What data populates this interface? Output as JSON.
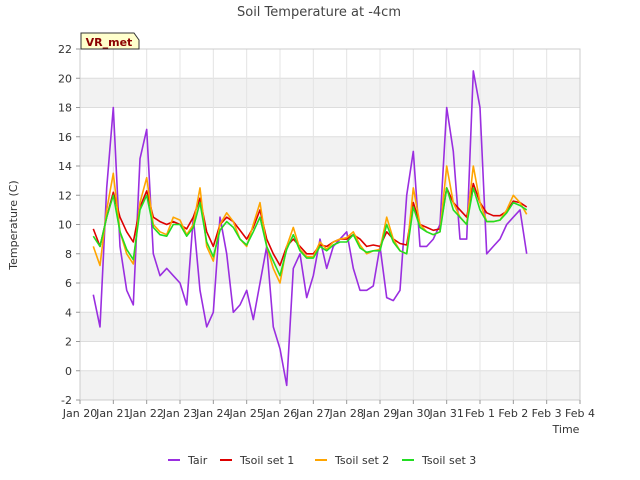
{
  "chart_data": {
    "type": "line",
    "title": "Soil Temperature at -4cm",
    "xlabel": "Time",
    "ylabel": "Temperature (C)",
    "badge": "VR_met",
    "ylim": [
      -2,
      22
    ],
    "yticks": [
      -2,
      0,
      2,
      4,
      6,
      8,
      10,
      12,
      14,
      16,
      18,
      20,
      22
    ],
    "xticks": [
      "Jan 20",
      "Jan 21",
      "Jan 22",
      "Jan 23",
      "Jan 24",
      "Jan 25",
      "Jan 26",
      "Jan 27",
      "Jan 28",
      "Jan 29",
      "Jan 30",
      "Jan 31",
      "Feb 1",
      "Feb 2",
      "Feb 3",
      "Feb 4"
    ],
    "grid": true,
    "legend_position": "bottom",
    "x": [
      0.4,
      0.6,
      0.8,
      1.0,
      1.2,
      1.4,
      1.6,
      1.8,
      2.0,
      2.2,
      2.4,
      2.6,
      2.8,
      3.0,
      3.2,
      3.4,
      3.6,
      3.8,
      4.0,
      4.2,
      4.4,
      4.6,
      4.8,
      5.0,
      5.2,
      5.4,
      5.6,
      5.8,
      6.0,
      6.2,
      6.4,
      6.6,
      6.8,
      7.0,
      7.2,
      7.4,
      7.6,
      7.8,
      8.0,
      8.2,
      8.4,
      8.6,
      8.8,
      9.0,
      9.2,
      9.4,
      9.6,
      9.8,
      10.0,
      10.2,
      10.4,
      10.6,
      10.8,
      11.0,
      11.2,
      11.4,
      11.6,
      11.8,
      12.0,
      12.2,
      12.4,
      12.6,
      12.8,
      13.0,
      13.2,
      13.4,
      13.6,
      13.8,
      14.0,
      14.2,
      14.4
    ],
    "series": [
      {
        "name": "Tair",
        "color": "#9a2ee0",
        "values": [
          5.2,
          3.0,
          12.5,
          18.0,
          8.5,
          5.5,
          4.5,
          14.5,
          16.5,
          8.0,
          6.5,
          7.0,
          6.5,
          6.0,
          4.5,
          10.5,
          5.5,
          3.0,
          4.0,
          10.5,
          8.0,
          4.0,
          4.5,
          5.5,
          3.5,
          6.0,
          8.5,
          3.0,
          1.5,
          -1.0,
          7.0,
          8.0,
          5.0,
          6.5,
          9.0,
          7.0,
          8.5,
          9.0,
          9.5,
          7.0,
          5.5,
          5.5,
          5.8,
          8.5,
          5.0,
          4.8,
          5.5,
          12.0,
          15.0,
          8.5,
          8.5,
          9.0,
          10.0,
          18.0,
          15.0,
          9.0,
          9.0,
          20.5,
          18.0,
          8.0,
          8.5,
          9.0,
          10.0,
          10.5,
          11.0,
          8.0,
          null,
          null,
          null,
          null,
          null
        ]
      },
      {
        "name": "Tsoil set 1",
        "color": "#dd0000",
        "values": [
          9.7,
          8.5,
          10.5,
          12.2,
          10.5,
          9.5,
          8.8,
          11.2,
          12.3,
          10.5,
          10.2,
          10.0,
          10.2,
          10.0,
          9.7,
          10.5,
          11.8,
          9.5,
          8.5,
          10.0,
          10.5,
          10.2,
          9.6,
          9.0,
          9.8,
          11.0,
          9.0,
          8.0,
          7.2,
          8.5,
          9.0,
          8.5,
          8.0,
          8.0,
          8.6,
          8.5,
          8.8,
          9.0,
          9.0,
          9.3,
          9.0,
          8.5,
          8.6,
          8.5,
          9.5,
          9.0,
          8.7,
          8.6,
          11.5,
          10.0,
          9.8,
          9.6,
          9.7,
          12.5,
          11.5,
          11.0,
          10.5,
          12.8,
          11.5,
          10.8,
          10.6,
          10.6,
          10.9,
          11.6,
          11.5,
          11.2,
          null,
          null,
          null,
          null,
          null
        ]
      },
      {
        "name": "Tsoil set 2",
        "color": "#ffa500",
        "values": [
          8.5,
          7.2,
          11.0,
          13.5,
          9.5,
          8.0,
          7.3,
          11.5,
          13.2,
          10.0,
          9.5,
          9.3,
          10.5,
          10.3,
          9.3,
          10.0,
          12.5,
          8.5,
          7.5,
          10.0,
          10.8,
          10.2,
          9.0,
          8.5,
          10.0,
          11.5,
          8.5,
          7.0,
          6.0,
          8.5,
          9.8,
          8.3,
          7.8,
          7.8,
          8.8,
          8.3,
          8.8,
          9.0,
          9.1,
          9.5,
          8.6,
          8.0,
          8.2,
          8.3,
          10.5,
          9.0,
          8.2,
          8.0,
          12.5,
          10.0,
          9.5,
          9.3,
          9.5,
          14.0,
          11.5,
          10.5,
          10.0,
          14.0,
          11.5,
          10.2,
          10.2,
          10.3,
          11.0,
          12.0,
          11.5,
          10.7,
          null,
          null,
          null,
          null,
          null
        ]
      },
      {
        "name": "Tsoil set 3",
        "color": "#22dd22",
        "values": [
          9.2,
          8.5,
          10.5,
          12.0,
          9.5,
          8.3,
          7.6,
          11.0,
          12.0,
          9.8,
          9.3,
          9.2,
          10.0,
          10.0,
          9.2,
          9.8,
          11.5,
          8.8,
          7.8,
          9.6,
          10.2,
          9.8,
          9.0,
          8.6,
          9.5,
          10.5,
          8.5,
          7.5,
          6.5,
          8.3,
          9.3,
          8.2,
          7.7,
          7.7,
          8.5,
          8.2,
          8.6,
          8.8,
          8.8,
          9.3,
          8.4,
          8.1,
          8.2,
          8.2,
          10.0,
          8.8,
          8.2,
          8.0,
          11.2,
          9.8,
          9.5,
          9.3,
          9.5,
          12.5,
          11.0,
          10.5,
          10.0,
          12.5,
          11.0,
          10.2,
          10.2,
          10.3,
          10.8,
          11.5,
          11.3,
          11.0,
          null,
          null,
          null,
          null,
          null
        ]
      }
    ]
  }
}
